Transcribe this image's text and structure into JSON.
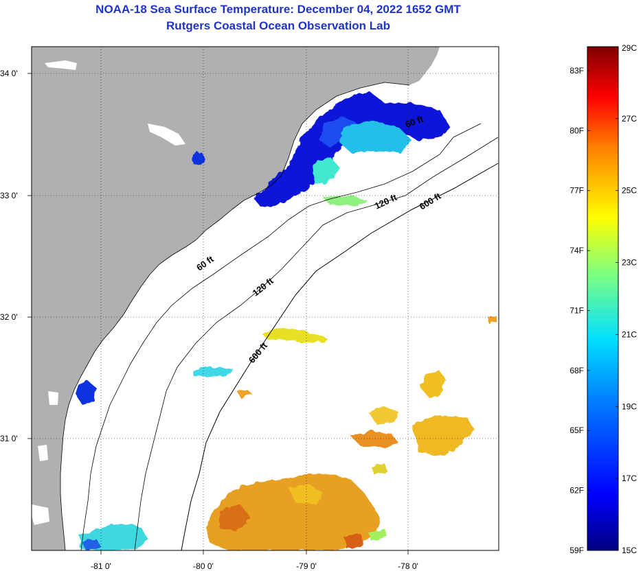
{
  "title": {
    "line1": "NOAA-18 Sea Surface Temperature:  December 04, 2022 1652 GMT",
    "line2": "Rutgers Coastal Ocean Observation Lab"
  },
  "axes": {
    "lon_labels": [
      "-81 0'",
      "-80 0'",
      "-79 0'",
      "-78 0'"
    ],
    "lat_labels": [
      "34 0'",
      "33 0'",
      "32 0'",
      "31 0'"
    ]
  },
  "isobaths": {
    "labels": [
      "60 ft",
      "120 ft",
      "600 ft",
      "120 ft",
      "600 ft",
      "60 ft"
    ]
  },
  "colorbar": {
    "celsius_labels": [
      "29C",
      "27C",
      "25C",
      "23C",
      "21C",
      "19C",
      "17C",
      "15C"
    ],
    "fahrenheit_labels": [
      "83F",
      "80F",
      "77F",
      "74F",
      "71F",
      "68F",
      "65F",
      "62F",
      "59F"
    ],
    "min_c": 15,
    "max_c": 29
  },
  "colors": {
    "title": "#1f33c8",
    "land": "#b0b0b0",
    "no_data": "#ffffff"
  }
}
